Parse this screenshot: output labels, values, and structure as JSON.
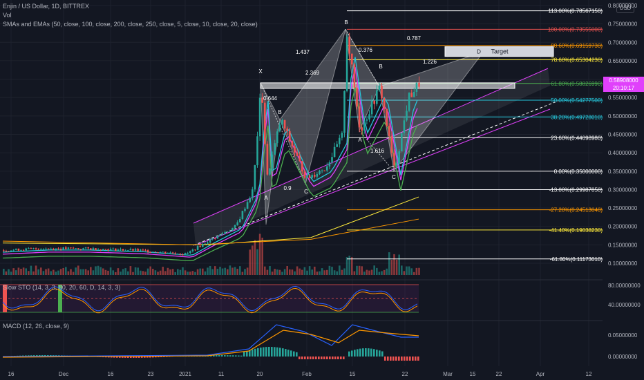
{
  "header": {
    "symbol": "Enjin / US Dollar, 1D, BITTREX",
    "vol": "Vol",
    "ma": "SMAs and EMAs (50, close, 100, close, 200, close, 250, close, 5, close, 10, close, 20, close)",
    "currency": "USD"
  },
  "price_tag": {
    "price": "0.58908000",
    "countdown": "20:10:17"
  },
  "colors": {
    "bg": "#131722",
    "up": "#26a69a",
    "down": "#ef5350",
    "pattern": "#ffffff",
    "channel": "#e040fb"
  },
  "chart_data": [
    {
      "type": "line",
      "title": "Enjin / US Dollar, 1D, BITTREX",
      "y_axis_labels": [
        "0.80000000",
        "0.75000000",
        "0.70000000",
        "0.65000000",
        "0.60000000",
        "0.55000000",
        "0.50000000",
        "0.45000000",
        "0.40000000",
        "0.35000000",
        "0.30000000",
        "0.25000000",
        "0.20000000",
        "0.15000000",
        "0.10000000"
      ],
      "ylim": [
        0.08,
        0.82
      ],
      "x_axis_labels": [
        "16",
        "Dec",
        "16",
        "23",
        "2021",
        "11",
        "20",
        "Feb",
        "15",
        "22",
        "Mar",
        "15",
        "22",
        "Apr",
        "12"
      ],
      "fib_levels": [
        {
          "label": "113.00%(0.78567150)",
          "value": 0.7857,
          "color": "#ffffff"
        },
        {
          "label": "100.00%(0.73555000)",
          "value": 0.7356,
          "color": "#ef5350"
        },
        {
          "label": "88.60%(0.69159730)",
          "value": 0.6916,
          "color": "#ff9800"
        },
        {
          "label": "78.60%(0.65304230)",
          "value": 0.653,
          "color": "#ffeb3b"
        },
        {
          "label": "61.80%(0.58826990)",
          "value": 0.5883,
          "color": "#4caf50"
        },
        {
          "label": "50.00%(0.54277500)",
          "value": 0.5428,
          "color": "#26c6da"
        },
        {
          "label": "38.20%(0.49728010)",
          "value": 0.4973,
          "color": "#26c6da"
        },
        {
          "label": "23.60%(0.44098980)",
          "value": 0.441,
          "color": "#ffffff"
        },
        {
          "label": "0.00%(0.35000000)",
          "value": 0.35,
          "color": "#ffffff"
        },
        {
          "label": "-13.00%(0.29987850)",
          "value": 0.2999,
          "color": "#ffffff"
        },
        {
          "label": "-27.20%(0.24513040)",
          "value": 0.2451,
          "color": "#ff9800"
        },
        {
          "label": "-41.40%(0.19038230)",
          "value": 0.1904,
          "color": "#ffeb3b"
        },
        {
          "label": "-61.80%(0.11173010)",
          "value": 0.1117,
          "color": "#ffffff"
        }
      ],
      "pattern_points": [
        {
          "label": "X",
          "value": 0.59
        },
        {
          "label": "A",
          "value": 0.205
        },
        {
          "label": "B",
          "value": 0.49
        },
        {
          "label": "C",
          "value": 0.315
        },
        {
          "label": "A",
          "value": 0.46
        },
        {
          "label": "B",
          "value": 0.58
        },
        {
          "label": "C",
          "value": 0.35
        }
      ],
      "pattern_labels": [
        "0.644",
        "0.9",
        "2.369",
        "1.437",
        "0.376",
        "0.787",
        "1.226",
        "1.616"
      ],
      "target_box": {
        "label": "D",
        "text": "Target",
        "value": 0.675
      }
    },
    {
      "type": "line",
      "title": "Slow STO (14, 3, 3, 80, 20, 60, D, 14, 3, 3)",
      "y_axis_labels": [
        "80.00000000",
        "40.00000000"
      ],
      "ylim": [
        0,
        100
      ]
    },
    {
      "type": "bar",
      "title": "MACD (12, 26, close, 9)",
      "y_axis_labels": [
        "0.05000000",
        "0.00000000"
      ],
      "ylim": [
        -0.03,
        0.08
      ]
    }
  ]
}
